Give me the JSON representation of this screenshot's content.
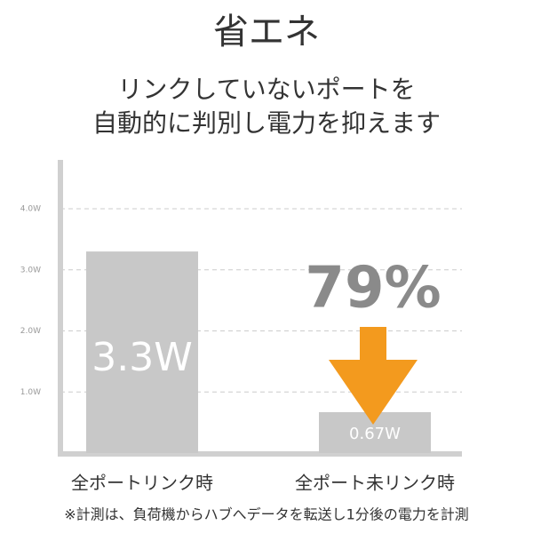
{
  "chart_data": {
    "type": "bar",
    "title": "省エネ",
    "subtitle": [
      "リンクしていないポートを",
      "自動的に判別し電力を抑えます"
    ],
    "categories": [
      "全ポートリンク時",
      "全ポート未リンク時"
    ],
    "values": [
      3.3,
      0.67
    ],
    "value_labels": [
      "3.3W",
      "0.67W"
    ],
    "color": "#c8c8c8",
    "ylim": [
      0,
      4.8
    ],
    "yticks": [
      {
        "value": 1,
        "label": "1.0W"
      },
      {
        "value": 2,
        "label": "2.0W"
      },
      {
        "value": 3,
        "label": "3.0W"
      },
      {
        "value": 4,
        "label": "4.0W"
      }
    ],
    "grid": true,
    "annotation": "79%",
    "footnote": "※計測は、負荷機からハブへデータを転送し1分後の電力を計測"
  }
}
